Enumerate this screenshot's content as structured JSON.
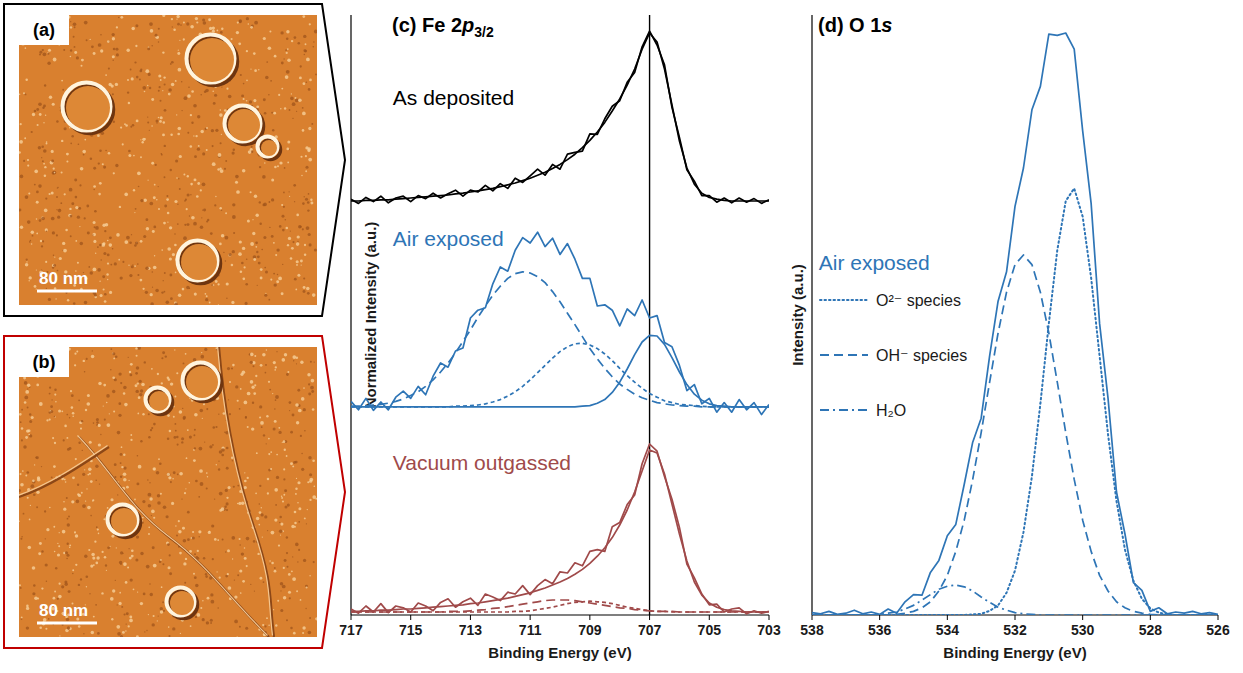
{
  "images": [
    {
      "label": "(a)",
      "scale_bar": "80 nm",
      "frame_color": "#000000"
    },
    {
      "label": "(b)",
      "scale_bar": "80 nm",
      "frame_color": "#c00000"
    }
  ],
  "chart_data": [
    {
      "type": "line",
      "title": [
        {
          "text": "(c) Fe 2"
        },
        {
          "text": "p",
          "style": "italic"
        },
        {
          "text": "3/2",
          "style": "sub"
        }
      ],
      "x_label": "Binding Energy (eV)",
      "y_label": "Normalized Intensity (a.u.)",
      "x": [
        717,
        716.75,
        716.5,
        716.25,
        716,
        715.75,
        715.5,
        715.25,
        715,
        714.75,
        714.5,
        714.25,
        714,
        713.75,
        713.5,
        713.25,
        713,
        712.75,
        712.5,
        712.25,
        712,
        711.75,
        711.5,
        711.25,
        711,
        710.75,
        710.5,
        710.25,
        710,
        709.75,
        709.5,
        709.25,
        709,
        708.75,
        708.5,
        708.25,
        708,
        707.75,
        707.5,
        707.25,
        707,
        706.75,
        706.5,
        706.25,
        706,
        705.75,
        705.5,
        705.25,
        705,
        704.75,
        704.5,
        704.25,
        704,
        703.75,
        703.5,
        703.25,
        703
      ],
      "xlim": [
        717,
        703
      ],
      "xticks": [
        717,
        715,
        713,
        711,
        709,
        707,
        705,
        703
      ],
      "ylim": [
        0,
        100
      ],
      "tick_labels": "x",
      "reference_line": {
        "x": 707,
        "color": "#000000"
      },
      "annotations": [
        {
          "text": "As deposited",
          "color": "#000000",
          "x": 715.6,
          "y": 86.3
        },
        {
          "text": "Air exposed",
          "color": "#2e75b6",
          "x": 715.6,
          "y": 62.8
        },
        {
          "text": "Vacuum outgassed",
          "color": "#a04a4a",
          "x": 715.6,
          "y": 25.5
        }
      ],
      "series": [
        {
          "color": "#000000",
          "line_style": "solid",
          "values": [
            69.3,
            68.6,
            69.6,
            68.9,
            69.8,
            68.7,
            69.5,
            69.8,
            68.9,
            69.9,
            69.4,
            70.3,
            69.5,
            70.2,
            70.8,
            69.8,
            70.8,
            70.5,
            71.6,
            70.7,
            71.9,
            71.1,
            72.8,
            72.1,
            73.2,
            74.3,
            73.3,
            75.1,
            74.3,
            76.8,
            77.1,
            77.3,
            80.2,
            80.1,
            82.7,
            84.8,
            85.7,
            88.8,
            90.4,
            94.7,
            97.3,
            95.0,
            91.7,
            84.6,
            79.6,
            74.2,
            72.3,
            69.9,
            69.9,
            68.8,
            69.5,
            68.7,
            69.5,
            68.8,
            69.4,
            68.6,
            69.2
          ]
        },
        {
          "color": "#000000",
          "line_style": "solid",
          "values": [
            69.0,
            69.0,
            69.1,
            69.1,
            69.2,
            69.2,
            69.3,
            69.4,
            69.5,
            69.6,
            69.7,
            69.8,
            69.9,
            70.0,
            70.2,
            70.3,
            70.5,
            70.7,
            70.9,
            71.1,
            71.4,
            71.7,
            72.0,
            72.4,
            72.8,
            73.3,
            73.8,
            74.4,
            75.1,
            75.9,
            76.8,
            77.9,
            79.1,
            80.5,
            82.1,
            84.0,
            86.0,
            88.3,
            91.0,
            94.3,
            97.0,
            95.5,
            91.0,
            85.0,
            79.0,
            74.5,
            71.8,
            70.3,
            69.6,
            69.3,
            69.1,
            69.0,
            69.0,
            69.0,
            69.0,
            69.0,
            69.0
          ]
        },
        {
          "color": "#2e75b6",
          "line_style": "solid",
          "values": [
            35.6,
            34.2,
            36.1,
            34.1,
            35.5,
            34.2,
            36.3,
            37.3,
            36.1,
            38.1,
            36.7,
            39.8,
            42.0,
            41.3,
            44.0,
            44.5,
            49.5,
            50.8,
            51.2,
            55.2,
            58.0,
            57.3,
            60.8,
            62.9,
            62.0,
            63.8,
            61.4,
            62.8,
            60.1,
            61.9,
            59.3,
            56.1,
            56.1,
            51.5,
            51.7,
            50.8,
            48.2,
            51.0,
            49.9,
            52.5,
            49.5,
            49.9,
            45.4,
            44.7,
            41.6,
            37.4,
            38.4,
            35.2,
            36.1,
            33.8,
            35.4,
            33.8,
            35.9,
            34.2,
            35.4,
            33.4,
            35.1
          ]
        },
        {
          "color": "#2e75b6",
          "line_style": "dashed",
          "values": [
            34.8,
            34.8,
            34.9,
            35.0,
            35.1,
            35.3,
            35.6,
            36.0,
            36.6,
            37.2,
            38.1,
            39.2,
            40.5,
            42.0,
            43.7,
            45.6,
            47.5,
            49.6,
            51.5,
            53.3,
            54.8,
            56.1,
            56.9,
            57.2,
            57.0,
            56.4,
            55.4,
            53.9,
            52.2,
            50.3,
            48.4,
            46.4,
            44.4,
            42.7,
            41.1,
            39.7,
            38.5,
            37.6,
            36.8,
            36.2,
            35.8,
            35.4,
            35.2,
            35.0,
            34.9,
            34.8,
            34.8,
            34.7,
            34.7,
            34.7,
            34.7,
            34.7,
            34.7,
            34.7,
            34.7,
            34.7,
            34.7
          ]
        },
        {
          "color": "#2e75b6",
          "line_style": "short_dash",
          "values": [
            34.7,
            34.7,
            34.7,
            34.7,
            34.7,
            34.7,
            34.7,
            34.7,
            34.7,
            34.7,
            34.7,
            34.7,
            34.7,
            34.7,
            34.8,
            34.8,
            34.9,
            35.0,
            35.2,
            35.5,
            35.9,
            36.5,
            37.2,
            38.1,
            39.2,
            40.4,
            41.6,
            42.8,
            43.9,
            44.7,
            45.2,
            45.3,
            45.0,
            44.4,
            43.5,
            42.4,
            41.1,
            39.9,
            38.8,
            37.8,
            36.9,
            36.3,
            35.7,
            35.4,
            35.1,
            35.0,
            34.9,
            34.8,
            34.7,
            34.7,
            34.7,
            34.7,
            34.7,
            34.7,
            34.7,
            34.7,
            34.7
          ]
        },
        {
          "color": "#2e75b6",
          "line_style": "solid",
          "values": [
            34.7,
            34.7,
            34.7,
            34.7,
            34.7,
            34.7,
            34.7,
            34.7,
            34.7,
            34.7,
            34.7,
            34.7,
            34.7,
            34.7,
            34.7,
            34.7,
            34.7,
            34.7,
            34.7,
            34.7,
            34.7,
            34.7,
            34.7,
            34.7,
            34.7,
            34.7,
            34.7,
            34.7,
            34.7,
            34.7,
            34.7,
            34.8,
            34.9,
            35.3,
            35.9,
            37.1,
            38.8,
            41.0,
            43.4,
            45.5,
            46.6,
            46.5,
            45.1,
            42.9,
            40.5,
            38.4,
            36.8,
            35.8,
            35.2,
            34.9,
            34.8,
            34.7,
            34.7,
            34.7,
            34.7,
            34.7,
            34.7
          ]
        },
        {
          "color": "#a04a4a",
          "line_style": "solid",
          "values": [
            1.0,
            0.3,
            1.5,
            0.5,
            1.9,
            0.4,
            1.5,
            1.2,
            0.5,
            2.0,
            1.5,
            0.7,
            2.1,
            2.7,
            1.3,
            2.2,
            2.8,
            1.6,
            3.5,
            3.0,
            2.4,
            3.8,
            3.5,
            4.9,
            3.4,
            4.9,
            5.9,
            5.2,
            7.2,
            7.0,
            8.7,
            8.2,
            10.6,
            10.9,
            10.6,
            14.7,
            15.4,
            18.4,
            20.0,
            25.2,
            28.5,
            27.3,
            23.1,
            19.3,
            14.6,
            8.5,
            6.2,
            3.5,
            1.7,
            1.8,
            0.5,
            1.0,
            1.2,
            0.2,
            0.7,
            0.3,
            0.6
          ]
        },
        {
          "color": "#a04a4a",
          "line_style": "solid",
          "values": [
            0.6,
            0.6,
            0.7,
            0.7,
            0.8,
            0.8,
            0.9,
            1.0,
            1.0,
            1.1,
            1.2,
            1.3,
            1.4,
            1.5,
            1.6,
            1.7,
            1.9,
            2.0,
            2.2,
            2.4,
            2.6,
            2.8,
            3.1,
            3.4,
            3.7,
            4.1,
            4.5,
            5.0,
            5.5,
            6.1,
            6.8,
            7.6,
            8.6,
            9.8,
            11.2,
            12.9,
            15.0,
            17.5,
            20.5,
            24.0,
            27.5,
            27.0,
            23.5,
            18.5,
            13.5,
            9.0,
            5.5,
            3.3,
            2.0,
            1.3,
            0.9,
            0.7,
            0.6,
            0.5,
            0.5,
            0.5,
            0.5
          ]
        },
        {
          "color": "#a04a4a",
          "line_style": "dashed",
          "values": [
            0.5,
            0.5,
            0.5,
            0.5,
            0.5,
            0.5,
            0.5,
            0.5,
            0.5,
            0.5,
            0.5,
            0.5,
            0.5,
            0.6,
            0.6,
            0.6,
            0.7,
            0.8,
            0.9,
            1.1,
            1.2,
            1.4,
            1.6,
            1.8,
            2.0,
            2.2,
            2.4,
            2.5,
            2.5,
            2.5,
            2.4,
            2.2,
            2.0,
            1.8,
            1.6,
            1.4,
            1.2,
            1.1,
            0.9,
            0.8,
            0.7,
            0.6,
            0.6,
            0.6,
            0.5,
            0.5,
            0.5,
            0.5,
            0.5,
            0.5,
            0.5,
            0.5,
            0.5,
            0.5,
            0.5,
            0.5,
            0.5
          ]
        },
        {
          "color": "#a04a4a",
          "line_style": "short_dash",
          "values": [
            0.5,
            0.5,
            0.5,
            0.5,
            0.5,
            0.5,
            0.5,
            0.5,
            0.5,
            0.5,
            0.5,
            0.5,
            0.5,
            0.5,
            0.5,
            0.5,
            0.5,
            0.5,
            0.5,
            0.5,
            0.5,
            0.5,
            0.6,
            0.6,
            0.7,
            0.9,
            1.1,
            1.3,
            1.6,
            1.9,
            2.1,
            2.2,
            2.3,
            2.2,
            2.1,
            1.9,
            1.6,
            1.3,
            1.1,
            0.9,
            0.7,
            0.6,
            0.6,
            0.5,
            0.5,
            0.5,
            0.5,
            0.5,
            0.5,
            0.5,
            0.5,
            0.5,
            0.5,
            0.5,
            0.5,
            0.5,
            0.5
          ]
        }
      ]
    },
    {
      "type": "line",
      "title": [
        {
          "text": "(d) O 1"
        },
        {
          "text": "s",
          "style": "italic"
        }
      ],
      "x_label": "Binding Energy (eV)",
      "y_label": "Intensity (a.u.)",
      "x": [
        538,
        537.75,
        537.5,
        537.25,
        537,
        536.75,
        536.5,
        536.25,
        536,
        535.75,
        535.5,
        535.25,
        535,
        534.75,
        534.5,
        534.25,
        534,
        533.75,
        533.5,
        533.25,
        533,
        532.75,
        532.5,
        532.25,
        532,
        531.75,
        531.5,
        531.25,
        531,
        530.75,
        530.5,
        530.25,
        530,
        529.75,
        529.5,
        529.25,
        529,
        528.75,
        528.5,
        528.25,
        528,
        527.75,
        527.5,
        527.25,
        527,
        526.75,
        526.5,
        526.25,
        526
      ],
      "xlim": [
        538,
        526
      ],
      "xticks": [
        538,
        536,
        534,
        532,
        530,
        528,
        526
      ],
      "ylim": [
        0,
        100
      ],
      "tick_labels": "x",
      "legend": "left",
      "annotations": [
        {
          "text": "Air exposed",
          "color": "#2e75b6",
          "x": 537.8,
          "y": 58.8
        }
      ],
      "series": [
        {
          "color": "#2e75b6",
          "line_style": "solid",
          "values": [
            0.4,
            0.2,
            0.6,
            0.1,
            0.3,
            0.8,
            0.2,
            0.5,
            0.1,
            1.0,
            0.3,
            2.2,
            3.4,
            3.3,
            7.1,
            9.1,
            13.2,
            15.1,
            21.8,
            28.8,
            32.8,
            43.2,
            52.3,
            57.2,
            68.1,
            74.5,
            84.2,
            88.1,
            96.8,
            96.6,
            97.0,
            94.3,
            80.7,
            68.6,
            48.6,
            36.1,
            20.5,
            13.5,
            5.4,
            4.1,
            0.6,
            1.2,
            0.2,
            0.5,
            0.3,
            0.6,
            0.2,
            0.4,
            0.1
          ]
        },
        {
          "name": "O²⁻ species",
          "color": "#2e75b6",
          "line_style": "dotted",
          "values": [
            0,
            0,
            0,
            0,
            0,
            0,
            0,
            0,
            0,
            0,
            0,
            0,
            0,
            0,
            0,
            0,
            0,
            0,
            0,
            0.1,
            0.2,
            0.7,
            1.6,
            3.7,
            7.4,
            13.8,
            23.1,
            35.2,
            48.6,
            60.8,
            69.0,
            71.1,
            66.4,
            56.2,
            43.2,
            30.1,
            19.0,
            10.9,
            5.7,
            2.7,
            1.1,
            0.4,
            0.1,
            0,
            0,
            0,
            0,
            0,
            0
          ]
        },
        {
          "name": "OH⁻ species",
          "color": "#2e75b6",
          "line_style": "dashed",
          "values": [
            0,
            0,
            0,
            0,
            0,
            0,
            0,
            0,
            0,
            0,
            0.1,
            0.3,
            0.6,
            1.2,
            2.2,
            4.0,
            6.6,
            10.6,
            15.8,
            22.6,
            30.4,
            38.8,
            47.0,
            53.8,
            58.4,
            60.0,
            58.4,
            53.8,
            47.0,
            38.8,
            30.4,
            22.6,
            15.8,
            10.6,
            6.6,
            4.0,
            2.2,
            1.2,
            0.6,
            0.3,
            0.1,
            0,
            0,
            0,
            0,
            0,
            0,
            0,
            0
          ]
        },
        {
          "name": "H₂O",
          "color": "#2e75b6",
          "line_style": "dash_dot",
          "values": [
            0,
            0,
            0,
            0,
            0,
            0,
            0,
            0,
            0.1,
            0.3,
            0.5,
            1.0,
            1.6,
            2.5,
            3.4,
            4.3,
            4.8,
            5.0,
            4.7,
            4.0,
            3.0,
            2.1,
            1.3,
            0.8,
            0.4,
            0.2,
            0.1,
            0,
            0,
            0,
            0,
            0,
            0,
            0,
            0,
            0,
            0,
            0,
            0,
            0,
            0,
            0,
            0,
            0,
            0,
            0,
            0,
            0,
            0
          ]
        }
      ]
    }
  ]
}
